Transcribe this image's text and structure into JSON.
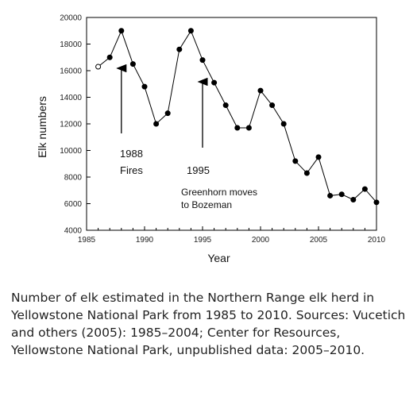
{
  "chart_data": {
    "type": "line",
    "xlabel": "Year",
    "ylabel": "Elk numbers",
    "xlim": [
      1985,
      2010
    ],
    "ylim": [
      4000,
      20000
    ],
    "xticks": [
      1985,
      1990,
      1995,
      2000,
      2005,
      2010
    ],
    "yticks": [
      4000,
      6000,
      8000,
      10000,
      12000,
      14000,
      16000,
      18000,
      20000
    ],
    "grid": false,
    "x": [
      1986,
      1987,
      1988,
      1989,
      1990,
      1991,
      1992,
      1993,
      1994,
      1995,
      1996,
      1997,
      1998,
      1999,
      2000,
      2001,
      2002,
      2003,
      2004,
      2005,
      2006,
      2007,
      2008,
      2009,
      2010
    ],
    "values": [
      16300,
      17000,
      19000,
      16500,
      14800,
      12000,
      12800,
      17600,
      19000,
      16800,
      15100,
      13400,
      11700,
      11700,
      14500,
      13400,
      12000,
      9200,
      8300,
      9500,
      6600,
      6700,
      6300,
      7100,
      6100
    ],
    "open_markers": [
      1986
    ],
    "annotations": [
      {
        "x": 1988,
        "lines": [
          "1988",
          "Fires"
        ]
      },
      {
        "x": 1995,
        "lines": [
          "1995",
          "Greenhorn moves",
          "to Bozeman"
        ]
      }
    ]
  },
  "caption": "Number of elk estimated in the Northern Range elk herd in Yellowstone National Park from 1985 to 2010. Sources: Vucetich and others (2005): 1985–2004; Center for Resources, Yellowstone National Park, unpublished data: 2005–2010."
}
